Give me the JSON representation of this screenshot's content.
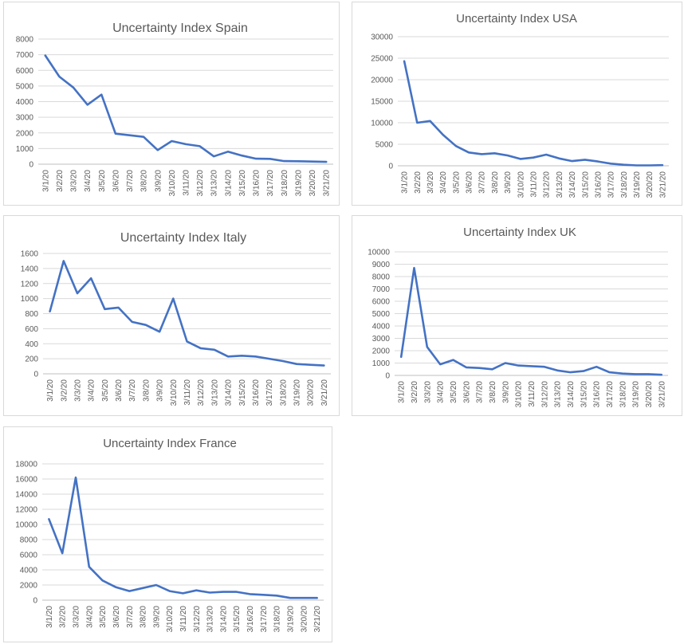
{
  "colors": {
    "line": "#4472c4"
  },
  "chart_data": [
    {
      "type": "line",
      "title": "Uncertainty Index Spain",
      "categories": [
        "3/1/20",
        "3/2/20",
        "3/3/20",
        "3/4/20",
        "3/5/20",
        "3/6/20",
        "3/7/20",
        "3/8/20",
        "3/9/20",
        "3/10/20",
        "3/11/20",
        "3/12/20",
        "3/13/20",
        "3/14/20",
        "3/15/20",
        "3/16/20",
        "3/17/20",
        "3/18/20",
        "3/19/20",
        "3/20/20",
        "3/21/20"
      ],
      "series": [
        {
          "values": [
            6950,
            5600,
            4900,
            3800,
            4450,
            1950,
            1850,
            1750,
            900,
            1480,
            1280,
            1150,
            500,
            800,
            550,
            350,
            340,
            200,
            190,
            170,
            150
          ]
        }
      ],
      "ylim": [
        0,
        8000
      ],
      "yticks": [
        "8000",
        "7000",
        "6000",
        "5000",
        "4000",
        "3000",
        "2000",
        "1000",
        "0"
      ],
      "grid": true,
      "legend": "none"
    },
    {
      "type": "line",
      "title": "Uncertainty Index USA",
      "categories": [
        "3/1/20",
        "3/2/20",
        "3/3/20",
        "3/4/20",
        "3/5/20",
        "3/6/20",
        "3/7/20",
        "3/8/20",
        "3/9/20",
        "3/10/20",
        "3/11/20",
        "3/12/20",
        "3/13/20",
        "3/14/20",
        "3/15/20",
        "3/16/20",
        "3/17/20",
        "3/18/20",
        "3/19/20",
        "3/20/20",
        "3/21/20"
      ],
      "series": [
        {
          "values": [
            24300,
            10000,
            10400,
            7200,
            4600,
            3100,
            2700,
            2900,
            2400,
            1600,
            1900,
            2600,
            1700,
            1100,
            1400,
            1000,
            500,
            250,
            100,
            100,
            150
          ]
        }
      ],
      "ylim": [
        0,
        30000
      ],
      "yticks": [
        "30000",
        "25000",
        "20000",
        "15000",
        "10000",
        "5000",
        "0"
      ],
      "grid": true,
      "legend": "none"
    },
    {
      "type": "line",
      "title": "Uncertainty Index  Italy",
      "categories": [
        "3/1/20",
        "3/2/20",
        "3/3/20",
        "3/4/20",
        "3/5/20",
        "3/6/20",
        "3/7/20",
        "3/8/20",
        "3/9/20",
        "3/10/20",
        "3/11/20",
        "3/12/20",
        "3/13/20",
        "3/14/20",
        "3/15/20",
        "3/16/20",
        "3/17/20",
        "3/18/20",
        "3/19/20",
        "3/20/20",
        "3/21/20"
      ],
      "series": [
        {
          "values": [
            830,
            1500,
            1070,
            1270,
            860,
            880,
            690,
            650,
            560,
            1000,
            430,
            340,
            320,
            230,
            240,
            230,
            200,
            170,
            130,
            120,
            110
          ]
        }
      ],
      "ylim": [
        0,
        1600
      ],
      "yticks": [
        "1600",
        "1400",
        "1200",
        "1000",
        "800",
        "600",
        "400",
        "200",
        "0"
      ],
      "grid": true,
      "legend": "none"
    },
    {
      "type": "line",
      "title": "Uncertainty Index UK",
      "categories": [
        "3/1/20",
        "3/2/20",
        "3/3/20",
        "3/4/20",
        "3/5/20",
        "3/6/20",
        "3/7/20",
        "3/8/20",
        "3/9/20",
        "3/10/20",
        "3/11/20",
        "3/12/20",
        "3/13/20",
        "3/14/20",
        "3/15/20",
        "3/16/20",
        "3/17/20",
        "3/18/20",
        "3/19/20",
        "3/20/20",
        "3/21/20"
      ],
      "series": [
        {
          "values": [
            1500,
            8700,
            2300,
            900,
            1250,
            650,
            600,
            500,
            1000,
            800,
            750,
            700,
            400,
            250,
            350,
            700,
            250,
            150,
            100,
            100,
            50
          ]
        }
      ],
      "ylim": [
        0,
        10000
      ],
      "yticks": [
        "10000",
        "9000",
        "8000",
        "7000",
        "6000",
        "5000",
        "4000",
        "3000",
        "2000",
        "1000",
        "0"
      ],
      "grid": true,
      "legend": "none"
    },
    {
      "type": "line",
      "title": "Uncertainty Index France",
      "categories": [
        "3/1/20",
        "3/2/20",
        "3/3/20",
        "3/4/20",
        "3/5/20",
        "3/6/20",
        "3/7/20",
        "3/8/20",
        "3/9/20",
        "3/10/20",
        "3/11/20",
        "3/12/20",
        "3/13/20",
        "3/14/20",
        "3/15/20",
        "3/16/20",
        "3/17/20",
        "3/18/20",
        "3/19/20",
        "3/20/20",
        "3/21/20"
      ],
      "series": [
        {
          "values": [
            10700,
            6200,
            16200,
            4400,
            2600,
            1700,
            1200,
            1600,
            2000,
            1200,
            900,
            1300,
            1000,
            1100,
            1100,
            800,
            700,
            600,
            300,
            300,
            300
          ]
        }
      ],
      "ylim": [
        0,
        18000
      ],
      "yticks": [
        "18000",
        "16000",
        "14000",
        "12000",
        "10000",
        "8000",
        "6000",
        "4000",
        "2000",
        "0"
      ],
      "grid": true,
      "legend": "none"
    }
  ]
}
